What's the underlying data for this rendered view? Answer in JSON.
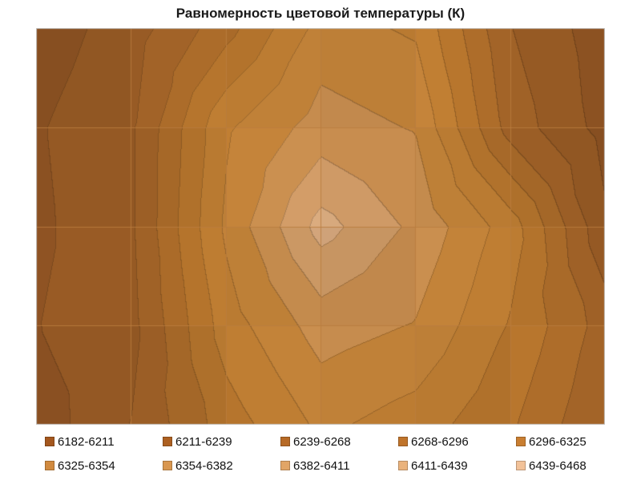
{
  "title": "Равномерность цветовой температуры (К)",
  "legend": {
    "position": "bottom",
    "rows": 2,
    "items_per_row": 5
  },
  "chart_data": {
    "type": "heatmap",
    "subtype": "contour-surface-top-view",
    "title": "Равномерность цветовой температуры (К)",
    "xlabel": "",
    "ylabel": "",
    "grid_on": true,
    "legend_position": "bottom",
    "value_min": 6182,
    "value_max": 6468,
    "rows": 5,
    "cols": 7,
    "grid_order": "rows-top-to-bottom",
    "grid_values_kelvin": [
      [
        6195,
        6225,
        6285,
        6365,
        6350,
        6240,
        6195
      ],
      [
        6208,
        6235,
        6350,
        6395,
        6380,
        6255,
        6200
      ],
      [
        6205,
        6235,
        6360,
        6450,
        6404,
        6340,
        6215
      ],
      [
        6210,
        6230,
        6340,
        6395,
        6380,
        6322,
        6255
      ],
      [
        6195,
        6240,
        6310,
        6360,
        6340,
        6300,
        6240
      ]
    ],
    "band_thresholds": [
      6182,
      6211,
      6239,
      6268,
      6296,
      6325,
      6354,
      6382,
      6411,
      6439,
      6468
    ],
    "band_labels": [
      "6182-6211",
      "6211-6239",
      "6239-6268",
      "6268-6296",
      "6296-6325",
      "6325-6354",
      "6354-6382",
      "6382-6411",
      "6411-6439",
      "6439-6468"
    ],
    "surface_band_colors": [
      "#8B5122",
      "#955924",
      "#9F6127",
      "#A96A29",
      "#B3732C",
      "#BC7C32",
      "#C08138",
      "#C68C4E",
      "#CD9965",
      "#D5A77C"
    ],
    "legend_band_colors": [
      "#A4571E",
      "#AD6021",
      "#B76A26",
      "#C0742B",
      "#C97E31",
      "#D18A3F",
      "#D99750",
      "#E1A566",
      "#EAB37D",
      "#F2C299"
    ],
    "gridline_color": "rgba(186,124,62,0.85)",
    "plot_border_color": "#C9C9C9"
  }
}
